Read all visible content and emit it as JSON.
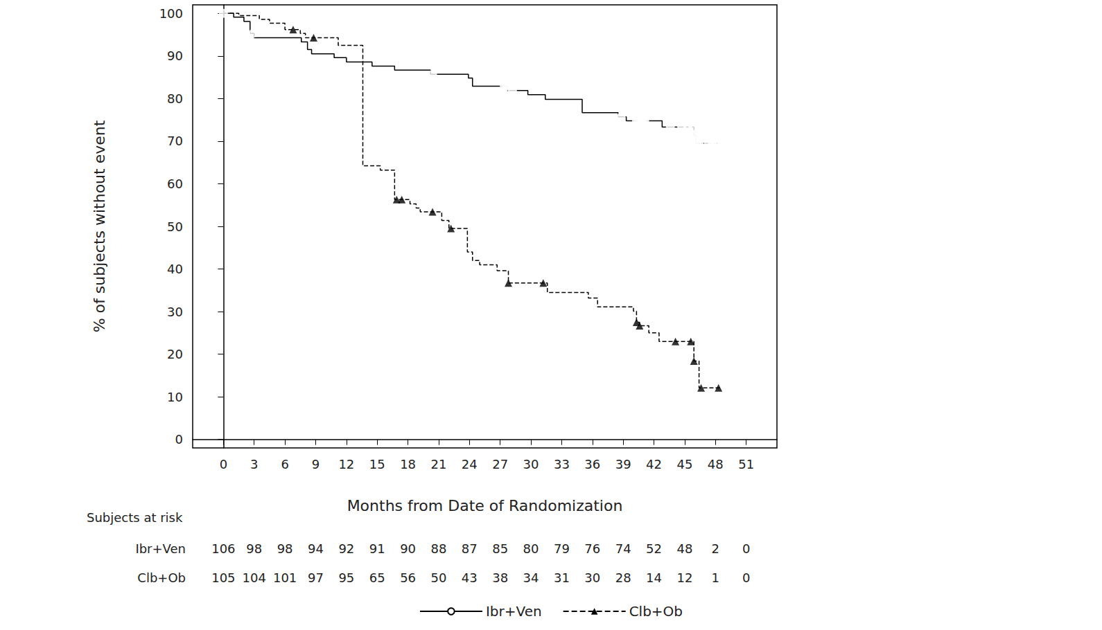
{
  "chart_data": {
    "type": "step",
    "x_label": "Months from Date of Randomization",
    "y_label": "% of subjects without event",
    "xlim": [
      -3,
      54
    ],
    "xticks": [
      0,
      3,
      6,
      9,
      12,
      15,
      18,
      21,
      24,
      27,
      30,
      33,
      36,
      39,
      42,
      45,
      48,
      51
    ],
    "ylim": [
      -2,
      102
    ],
    "yticks": [
      0,
      10,
      20,
      30,
      40,
      50,
      60,
      70,
      80,
      90,
      100
    ],
    "grid": false,
    "legend": "bottom",
    "series": [
      {
        "name": "Ibr+Ven",
        "color": "#000000",
        "line_style": "solid",
        "marker": "circle_open",
        "x": [
          0,
          1,
          2,
          2.6,
          3,
          7.6,
          8.2,
          8.6,
          10.8,
          12,
          14.5,
          16.7,
          20.2,
          23.9,
          24.3,
          27.7,
          29.7,
          31.4,
          35.0,
          38.5,
          39.3,
          42.8,
          45.9,
          46.1,
          48.5
        ],
        "values": [
          100,
          99.1,
          98.1,
          95.3,
          94.3,
          93.3,
          91.5,
          90.5,
          89.6,
          88.6,
          87.6,
          86.7,
          85.7,
          84.8,
          82.9,
          81.9,
          80.9,
          79.8,
          76.7,
          75.7,
          74.8,
          73.3,
          71.4,
          69.5,
          69.5
        ],
        "censored_x": [
          0,
          2.9,
          20.4,
          27.4,
          27.6,
          28.2,
          38.8,
          40.3,
          40.5,
          40.7,
          40.9,
          41.1,
          43.6,
          44.7,
          45.3,
          45.8,
          45.9,
          46.0,
          46.2,
          46.4,
          47.3,
          47.7,
          48.1,
          48.6
        ],
        "censored_y": [
          100,
          95.3,
          85.7,
          82.9,
          82.9,
          81.9,
          75.7,
          74.8,
          74.8,
          74.8,
          74.8,
          74.8,
          73.3,
          73.3,
          73.3,
          73.3,
          71.4,
          71.4,
          69.5,
          69.5,
          69.5,
          69.5,
          69.5,
          69.5
        ]
      },
      {
        "name": "Clb+Ob",
        "color": "#000000",
        "line_style": "dashed",
        "marker": "triangle",
        "x": [
          0,
          1.5,
          3.5,
          4.5,
          6,
          7.5,
          8,
          11.2,
          13.6,
          15.3,
          16.7,
          18.2,
          18.8,
          19.2,
          21.3,
          22,
          23.8,
          24.3,
          25,
          26.7,
          27.8,
          31.6,
          35.6,
          36.5,
          40.0,
          40.3,
          40.6,
          41.5,
          42.5,
          45.9,
          46.4,
          48.5
        ],
        "values": [
          100,
          99.5,
          98.6,
          97.7,
          96.2,
          95.3,
          94.3,
          92.5,
          64.2,
          63.2,
          56.3,
          55.3,
          54.3,
          53.4,
          51.4,
          49.5,
          44.0,
          42.0,
          41.0,
          39.6,
          36.7,
          34.5,
          33.2,
          31.1,
          30.1,
          27.5,
          26.7,
          25.0,
          23.0,
          18.4,
          12.1,
          12.1
        ],
        "censored_x": [
          6.8,
          8.8,
          16.9,
          17.4,
          20.4,
          22.2,
          27.8,
          31.2,
          40.3,
          40.6,
          44.1,
          45.6,
          45.9,
          46.6,
          48.3
        ],
        "censored_y": [
          96.2,
          94.3,
          56.3,
          56.3,
          53.4,
          49.5,
          36.7,
          36.7,
          27.5,
          26.7,
          23.0,
          23.0,
          18.4,
          12.1,
          12.1
        ]
      }
    ],
    "at_risk": {
      "title": "Subjects at risk",
      "x": [
        0,
        3,
        6,
        9,
        12,
        15,
        18,
        21,
        24,
        27,
        30,
        33,
        36,
        39,
        42,
        45,
        48,
        51
      ],
      "rows": [
        {
          "name": "Ibr+Ven",
          "values": [
            106,
            98,
            98,
            94,
            92,
            91,
            90,
            88,
            87,
            85,
            80,
            79,
            76,
            74,
            52,
            48,
            2,
            0
          ]
        },
        {
          "name": "Clb+Ob",
          "values": [
            105,
            104,
            101,
            97,
            95,
            65,
            56,
            50,
            43,
            38,
            34,
            31,
            30,
            28,
            14,
            12,
            1,
            0
          ]
        }
      ]
    }
  }
}
